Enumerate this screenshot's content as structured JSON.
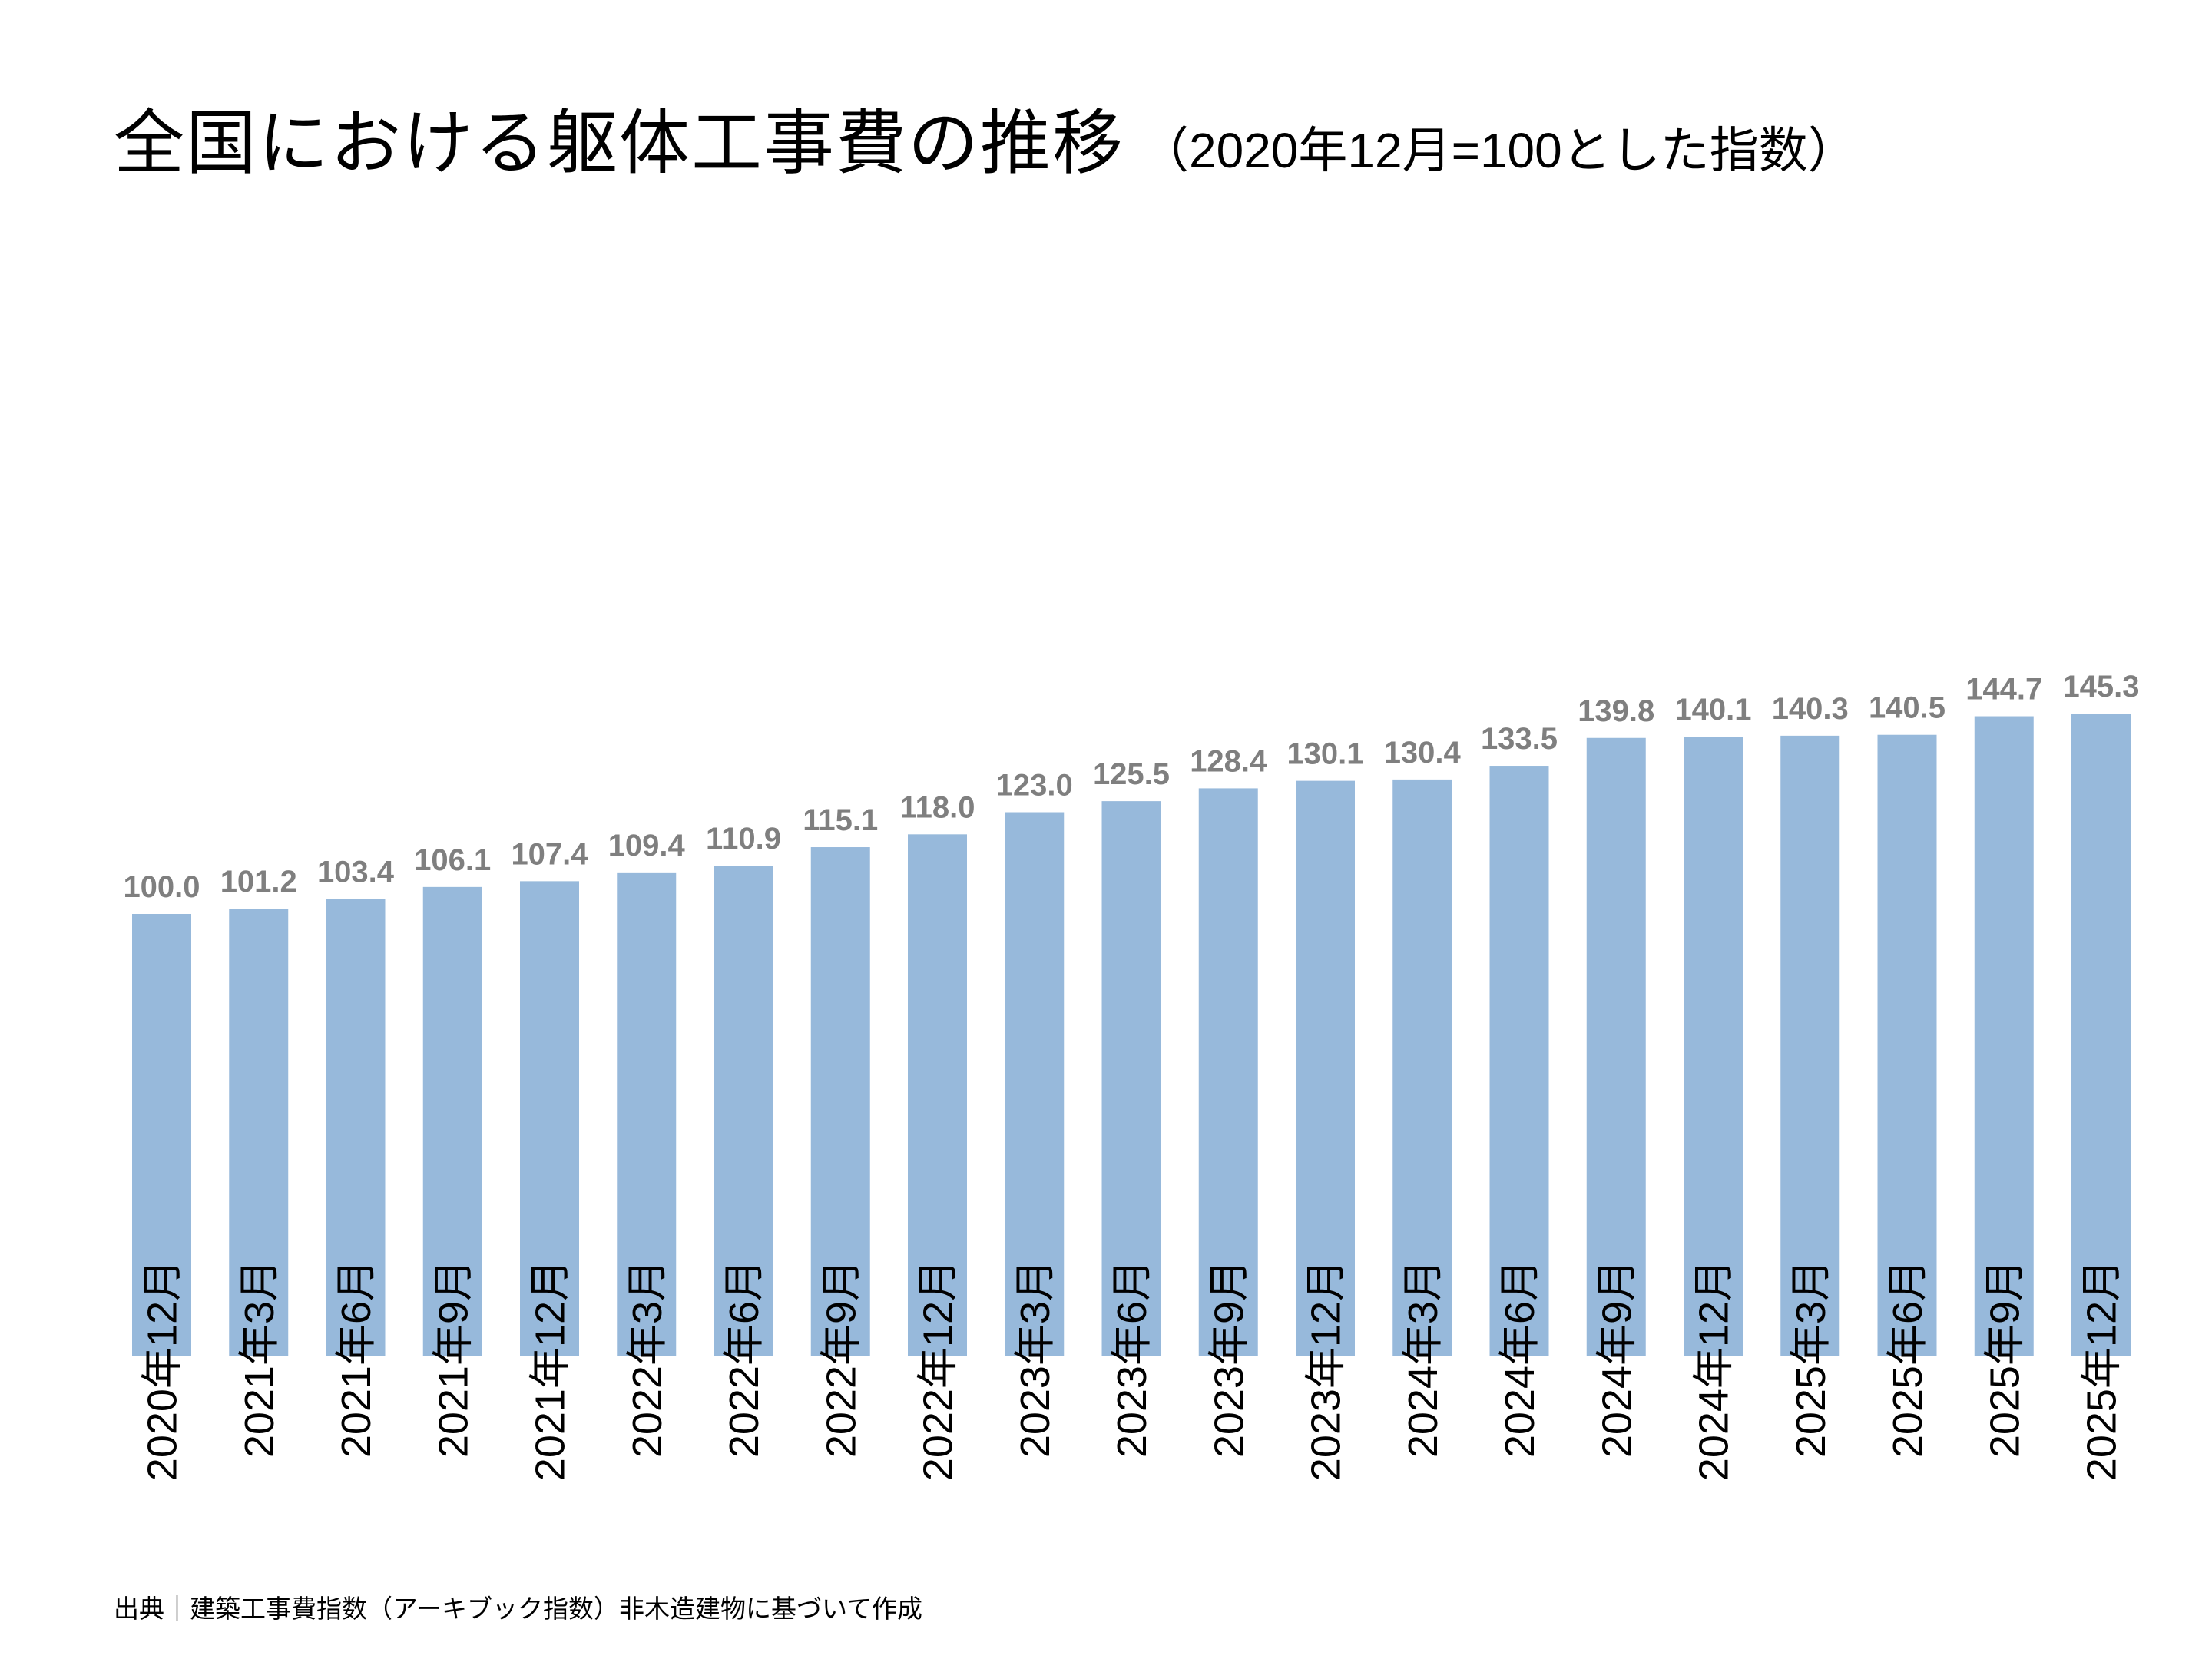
{
  "title": "全国における躯体工事費の推移",
  "subtitle": "（2020年12月=100とした指数）",
  "source": "出典｜建築工事費指数（アーキブック指数）非木造建物に基づいて作成",
  "chart_data": {
    "type": "bar",
    "title": "全国における躯体工事費の推移（2020年12月=100とした指数）",
    "xlabel": "",
    "ylabel": "",
    "ylim": [
      0,
      150
    ],
    "grid": false,
    "legend": "none",
    "bar_color": "#97b9db",
    "label_color": "#7f7f7f",
    "categories": [
      "2020年12月",
      "2021年3月",
      "2021年6月",
      "2021年9月",
      "2021年12月",
      "2022年3月",
      "2022年6月",
      "2022年9月",
      "2022年12月",
      "2023年3月",
      "2023年6月",
      "2023年9月",
      "2023年12月",
      "2024年3月",
      "2024年6月",
      "2024年9月",
      "2024年12月",
      "2025年3月",
      "2025年6月",
      "2025年9月",
      "2025年12月"
    ],
    "values": [
      100.0,
      101.2,
      103.4,
      106.1,
      107.4,
      109.4,
      110.9,
      115.1,
      118.0,
      123.0,
      125.5,
      128.4,
      130.1,
      130.4,
      133.5,
      139.8,
      140.1,
      140.3,
      140.5,
      144.7,
      145.3
    ],
    "data_labels": [
      "100.0",
      "101.2",
      "103.4",
      "106.1",
      "107.4",
      "109.4",
      "110.9",
      "115.1",
      "118.0",
      "123.0",
      "125.5",
      "128.4",
      "130.1",
      "130.4",
      "133.5",
      "139.8",
      "140.1",
      "140.3",
      "140.5",
      "144.7",
      "145.3"
    ]
  }
}
